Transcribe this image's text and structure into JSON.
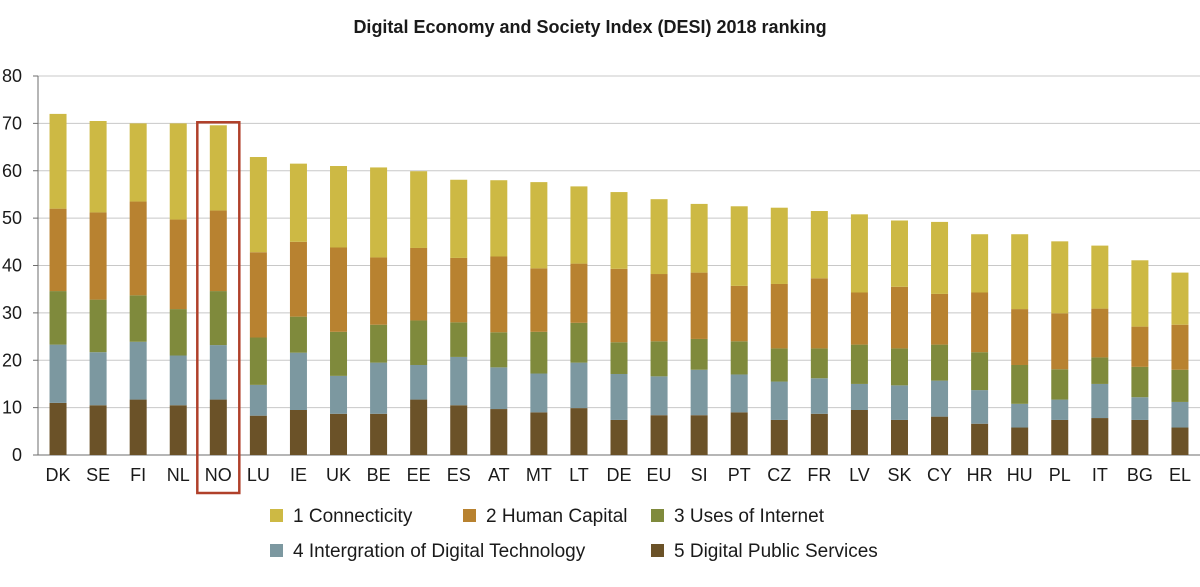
{
  "chart_data": {
    "type": "bar",
    "stacked": true,
    "title": "Digital Economy and Society Index (DESI) 2018 ranking",
    "xlabel": "",
    "ylabel": "",
    "ylim": [
      0,
      80
    ],
    "yticks": [
      0,
      10,
      20,
      30,
      40,
      50,
      60,
      70,
      80
    ],
    "grid": "horizontal",
    "highlight_category": "NO",
    "highlight_color": "#b0402a",
    "categories": [
      "DK",
      "SE",
      "FI",
      "NL",
      "NO",
      "LU",
      "IE",
      "UK",
      "BE",
      "EE",
      "ES",
      "AT",
      "MT",
      "LT",
      "DE",
      "EU",
      "SI",
      "PT",
      "CZ",
      "FR",
      "LV",
      "SK",
      "CY",
      "HR",
      "HU",
      "PL",
      "IT",
      "BG",
      "EL"
    ],
    "series": [
      {
        "name": "5 Digital Public Services",
        "color": "#6b5228",
        "values": [
          11,
          10.5,
          11.7,
          10.5,
          11.7,
          8.3,
          9.5,
          8.7,
          8.7,
          11.7,
          10.5,
          9.7,
          9.0,
          9.9,
          7.4,
          8.4,
          8.4,
          9.0,
          7.4,
          8.7,
          9.5,
          7.4,
          8.1,
          6.6,
          5.8,
          7.4,
          7.8,
          7.4,
          5.8
        ]
      },
      {
        "name": "4 Intergration of Digital Technology",
        "color": "#7c98a0",
        "values": [
          12.3,
          11.2,
          12.2,
          10.5,
          11.5,
          6.5,
          12.1,
          8.0,
          10.8,
          7.3,
          10.2,
          8.8,
          8.2,
          9.6,
          9.7,
          8.2,
          9.6,
          8.0,
          8.1,
          7.5,
          5.5,
          7.3,
          7.6,
          7.1,
          5.0,
          4.3,
          7.2,
          4.8,
          5.4
        ]
      },
      {
        "name": "3 Uses of Internet",
        "color": "#7f8a3c",
        "values": [
          11.3,
          11.1,
          9.8,
          9.8,
          11.4,
          10.0,
          7.6,
          9.3,
          8.0,
          9.4,
          7.3,
          7.4,
          8.8,
          8.4,
          6.7,
          7.4,
          6.5,
          7.0,
          7.0,
          6.3,
          8.3,
          7.8,
          7.6,
          8.0,
          8.2,
          6.4,
          5.6,
          6.4,
          6.8
        ]
      },
      {
        "name": "2 Human Capital",
        "color": "#b88230",
        "values": [
          17.4,
          18.4,
          19.8,
          18.9,
          17.0,
          18.0,
          15.8,
          17.8,
          14.2,
          15.3,
          13.6,
          16.0,
          13.4,
          12.5,
          15.5,
          14.2,
          14.0,
          11.7,
          13.6,
          14.8,
          11.0,
          13.0,
          10.7,
          12.6,
          11.8,
          11.8,
          10.3,
          8.5,
          9.5
        ]
      },
      {
        "name": "1 Connecticity",
        "color": "#cdb944",
        "values": [
          20.0,
          19.3,
          16.5,
          20.3,
          18.0,
          20.1,
          16.5,
          17.2,
          19.0,
          16.2,
          16.5,
          16.1,
          18.2,
          16.3,
          16.2,
          15.8,
          14.5,
          16.8,
          16.1,
          14.2,
          16.5,
          14.0,
          15.2,
          12.3,
          15.8,
          15.2,
          13.3,
          14.0,
          11.0
        ]
      }
    ],
    "legend": {
      "position": "bottom",
      "row1": [
        "1 Connecticity",
        "2 Human Capital",
        "3 Uses of Internet"
      ],
      "row2": [
        "4 Intergration of Digital Technology",
        "5 Digital Public Services"
      ]
    }
  }
}
